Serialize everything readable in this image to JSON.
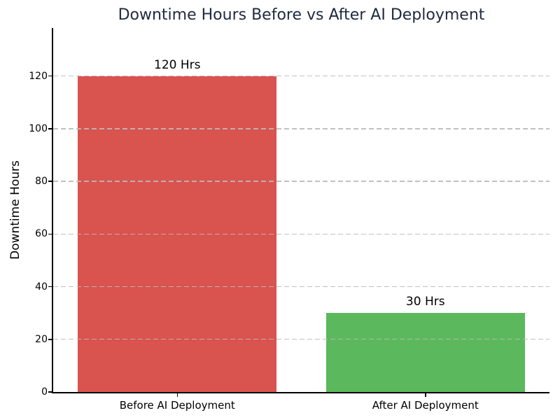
{
  "figure": {
    "background": "#ffffff",
    "title_color": "#1f2a40",
    "axis_color": "#000000",
    "grid_color": "#bababa"
  },
  "chart_data": {
    "type": "bar",
    "title": "Downtime Hours Before vs After AI Deployment",
    "xlabel": "",
    "ylabel": "Downtime Hours",
    "categories": [
      "Before AI Deployment",
      "After AI Deployment"
    ],
    "values": [
      120,
      30
    ],
    "value_labels": [
      "120 Hrs",
      "30 Hrs"
    ],
    "bar_colors": [
      "#d9534f",
      "#5cb85c"
    ],
    "ylim": [
      0,
      138
    ],
    "yticks": [
      0,
      20,
      40,
      60,
      80,
      100,
      120
    ],
    "grid": "dashed-horizontal-over-bars",
    "legend": "none"
  }
}
